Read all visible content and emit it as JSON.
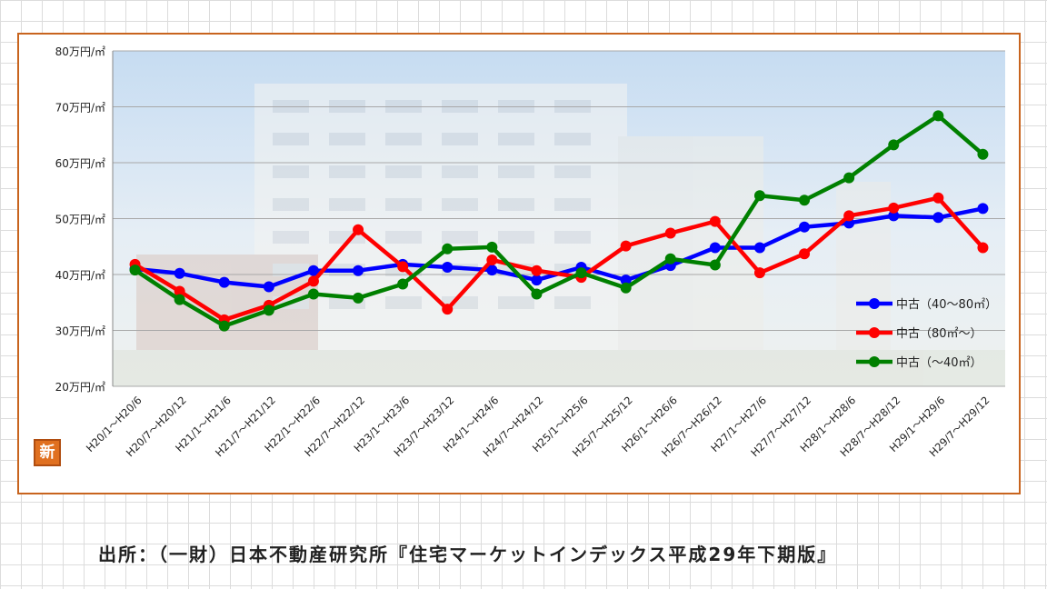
{
  "chart_data": {
    "type": "line",
    "ylim": [
      20,
      80
    ],
    "y_ticks": [
      "20万円/㎡",
      "30万円/㎡",
      "40万円/㎡",
      "50万円/㎡",
      "60万円/㎡",
      "70万円/㎡",
      "80万円/㎡"
    ],
    "grid": true,
    "legend_position": "right",
    "categories": [
      "H20/1～H20/6",
      "H20/7～H20/12",
      "H21/1～H21/6",
      "H21/7～H21/12",
      "H22/1～H22/6",
      "H22/7～H22/12",
      "H23/1～H23/6",
      "H23/7～H23/12",
      "H24/1～H24/6",
      "H24/7～H24/12",
      "H25/1～H25/6",
      "H25/7～H25/12",
      "H26/1～H26/6",
      "H26/7～H26/12",
      "H27/1～H27/6",
      "H27/7～H27/12",
      "H28/1～H28/6",
      "H28/7～H28/12",
      "H29/1～H29/6",
      "H29/7～H29/12"
    ],
    "series": [
      {
        "name": "中古（40～80㎡）",
        "color": "#0000ff",
        "values": [
          41.0,
          40.2,
          38.6,
          37.8,
          40.7,
          40.7,
          41.8,
          41.3,
          40.8,
          39.0,
          41.3,
          39.0,
          41.6,
          44.8,
          44.8,
          48.5,
          49.2,
          50.5,
          50.2,
          51.8
        ]
      },
      {
        "name": "中古（80㎡～）",
        "color": "#ff0000",
        "values": [
          41.8,
          37.0,
          31.9,
          34.5,
          38.8,
          48.0,
          41.4,
          33.8,
          42.6,
          40.7,
          39.5,
          45.1,
          47.4,
          49.5,
          40.3,
          43.7,
          50.5,
          51.9,
          53.7,
          44.8
        ]
      },
      {
        "name": "中古（～40㎡）",
        "color": "#008000",
        "values": [
          40.8,
          35.5,
          30.8,
          33.6,
          36.5,
          35.8,
          38.3,
          44.6,
          44.9,
          36.5,
          40.3,
          37.6,
          42.8,
          41.7,
          54.1,
          53.3,
          57.3,
          63.2,
          68.4,
          61.5
        ]
      }
    ]
  },
  "logo_text": "新",
  "source_text": "出所：（一財）日本不動産研究所『住宅マーケットインデックス平成29年下期版』"
}
